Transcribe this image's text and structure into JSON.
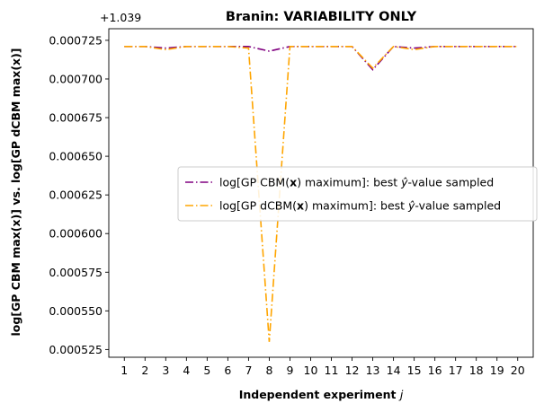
{
  "chart_data": {
    "type": "line",
    "title": "Branin: VARIABILITY ONLY",
    "xlabel": "Independent experiment",
    "xlabel_var": "j",
    "ylabel": "log[GP CBM max(x)] vs. log[GP dCBM max(x)]",
    "y_offset_label": "+1.039",
    "x": [
      1,
      2,
      3,
      4,
      5,
      6,
      7,
      8,
      9,
      10,
      11,
      12,
      13,
      14,
      15,
      16,
      17,
      18,
      19,
      20
    ],
    "xlim": [
      0.25,
      20.75
    ],
    "ylim": [
      0.00052,
      0.0007325
    ],
    "yticks": [
      "0.000525",
      "0.000550",
      "0.000575",
      "0.000600",
      "0.000625",
      "0.000650",
      "0.000675",
      "0.000700",
      "0.000725"
    ],
    "legend_position": "center-right",
    "series": [
      {
        "name_prefix": "log[GP CBM(",
        "name_var": "x",
        "name_suffix": ") maximum]: best ",
        "name_yhat": "ŷ",
        "name_tail": "-value sampled",
        "color": "#800080",
        "style": "dash-dot",
        "values": [
          0.000721,
          0.000721,
          0.00072,
          0.000721,
          0.000721,
          0.000721,
          0.000721,
          0.000718,
          0.000721,
          0.000721,
          0.000721,
          0.000721,
          0.000706,
          0.000721,
          0.00072,
          0.000721,
          0.000721,
          0.000721,
          0.000721,
          0.000721
        ]
      },
      {
        "name_prefix": "log[GP dCBM(",
        "name_var": "x",
        "name_suffix": ") maximum]: best ",
        "name_yhat": "ŷ",
        "name_tail": "-value sampled",
        "color": "#FFA500",
        "style": "dash-dot",
        "values": [
          0.000721,
          0.000721,
          0.000719,
          0.000721,
          0.000721,
          0.000721,
          0.00072,
          0.00053,
          0.000721,
          0.000721,
          0.000721,
          0.000721,
          0.000707,
          0.000721,
          0.000719,
          0.000721,
          0.000721,
          0.000721,
          0.000721,
          0.000721
        ]
      }
    ]
  }
}
